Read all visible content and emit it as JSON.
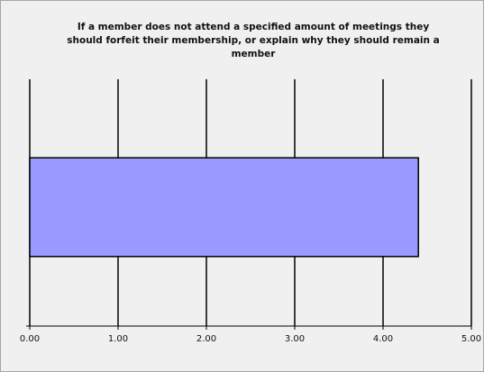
{
  "chart_data": {
    "type": "hbar",
    "title": "If a member does not attend a specified amount of meetings they should forfeit their membership, or explain why they should remain a member",
    "categories": [
      null
    ],
    "values": [
      4.4
    ],
    "color": "#9999ff",
    "xlim": [
      0,
      5
    ],
    "xticks": [
      {
        "value": 0,
        "label": "0.00"
      },
      {
        "value": 1,
        "label": "1.00"
      },
      {
        "value": 2,
        "label": "2.00"
      },
      {
        "value": 3,
        "label": "3.00"
      },
      {
        "value": 4,
        "label": "4.00"
      },
      {
        "value": 5,
        "label": "5.00"
      }
    ],
    "grid": true
  }
}
